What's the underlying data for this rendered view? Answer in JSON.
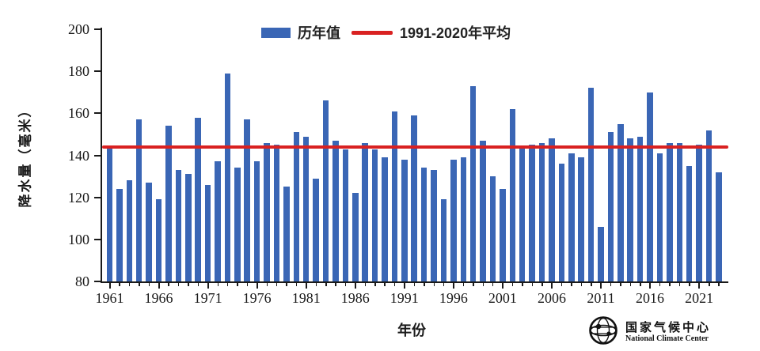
{
  "chart_data": {
    "type": "bar",
    "title": "",
    "xlabel": "年份",
    "ylabel": "降水量（毫米）",
    "ylim": [
      80,
      200
    ],
    "yticks": [
      80,
      100,
      120,
      140,
      160,
      180,
      200
    ],
    "years_range": [
      1961,
      2023
    ],
    "xticks": [
      1961,
      1966,
      1971,
      1976,
      1981,
      1986,
      1991,
      1996,
      2001,
      2006,
      2011,
      2016,
      2021
    ],
    "series_label": "历年值",
    "values": [
      144,
      124,
      128,
      157,
      127,
      119,
      154,
      133,
      131,
      158,
      126,
      137,
      179,
      134,
      157,
      137,
      146,
      145,
      125,
      151,
      149,
      129,
      166,
      147,
      143,
      122,
      146,
      143,
      139,
      161,
      138,
      159,
      134,
      133,
      119,
      138,
      139,
      173,
      147,
      130,
      124,
      162,
      144,
      145,
      146,
      148,
      136,
      141,
      139,
      172,
      106,
      151,
      155,
      148,
      149,
      170,
      141,
      146,
      146,
      135,
      145,
      152,
      132
    ],
    "average_line": {
      "label": "1991-2020年平均",
      "value": 144
    },
    "bar_color": "#3a66b5",
    "line_color": "#d92121",
    "legend_position": "top",
    "grid": "off"
  },
  "footer": {
    "logo_cn": "国家气候中心",
    "logo_en": "National Climate Center"
  }
}
